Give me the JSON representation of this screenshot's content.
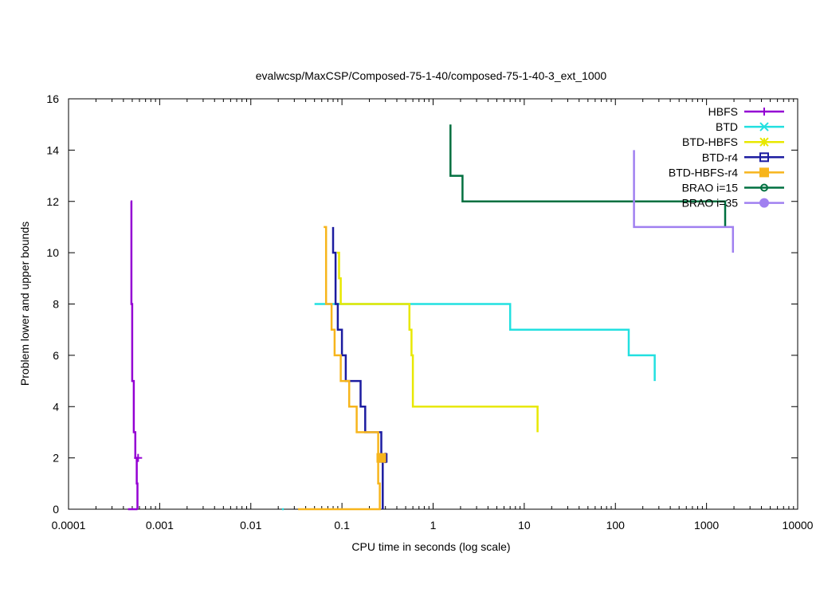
{
  "chart_data": {
    "type": "line",
    "title": "evalwcsp/MaxCSP/Composed-75-1-40/composed-75-1-40-3_ext_1000",
    "xlabel": "CPU time in seconds (log scale)",
    "ylabel": "Problem lower and upper bounds",
    "xscale": "log",
    "xlim": [
      0.0001,
      10000
    ],
    "ylim": [
      0,
      16
    ],
    "xticks": [
      {
        "value": 0.0001,
        "label": "0.0001"
      },
      {
        "value": 0.001,
        "label": "0.001"
      },
      {
        "value": 0.01,
        "label": "0.01"
      },
      {
        "value": 0.1,
        "label": "0.1"
      },
      {
        "value": 1,
        "label": "1"
      },
      {
        "value": 10,
        "label": "10"
      },
      {
        "value": 100,
        "label": "100"
      },
      {
        "value": 1000,
        "label": "1000"
      },
      {
        "value": 10000,
        "label": "10000"
      }
    ],
    "yticks": [
      {
        "value": 0,
        "label": "0"
      },
      {
        "value": 2,
        "label": "2"
      },
      {
        "value": 4,
        "label": "4"
      },
      {
        "value": 6,
        "label": "6"
      },
      {
        "value": 8,
        "label": "8"
      },
      {
        "value": 10,
        "label": "10"
      },
      {
        "value": 12,
        "label": "12"
      },
      {
        "value": 14,
        "label": "14"
      },
      {
        "value": 16,
        "label": "16"
      }
    ],
    "grid": false,
    "legend_position": "top-right",
    "series": [
      {
        "name": "HBFS",
        "color": "#9400d3",
        "marker": "plus",
        "marker_point": [
          0.00058,
          2
        ],
        "lines": [
          [
            [
              0.00048,
              12
            ],
            [
              0.00049,
              12
            ],
            [
              0.00049,
              8
            ],
            [
              0.0005,
              8
            ],
            [
              0.0005,
              5
            ],
            [
              0.00052,
              5
            ],
            [
              0.00052,
              3
            ],
            [
              0.00054,
              3
            ],
            [
              0.00054,
              2
            ],
            [
              0.00056,
              2
            ],
            [
              0.00056,
              1
            ],
            [
              0.00057,
              1
            ],
            [
              0.00057,
              0
            ]
          ],
          [
            [
              0.00045,
              0
            ],
            [
              0.00057,
              0
            ]
          ]
        ]
      },
      {
        "name": "BTD",
        "color": "#22e0e0",
        "marker": "cross",
        "lines": [
          [
            [
              0.05,
              8
            ],
            [
              7,
              8
            ],
            [
              7,
              7
            ],
            [
              140,
              7
            ],
            [
              140,
              6
            ],
            [
              270,
              6
            ],
            [
              270,
              5
            ]
          ],
          [
            [
              0.022,
              0
            ],
            [
              0.023,
              0
            ]
          ]
        ]
      },
      {
        "name": "BTD-HBFS",
        "color": "#e8e800",
        "marker": "star",
        "lines": [
          [
            [
              0.088,
              10
            ],
            [
              0.093,
              10
            ],
            [
              0.093,
              9
            ],
            [
              0.097,
              9
            ],
            [
              0.097,
              8
            ],
            [
              0.55,
              8
            ],
            [
              0.55,
              7
            ],
            [
              0.58,
              7
            ],
            [
              0.58,
              6
            ],
            [
              0.6,
              6
            ],
            [
              0.6,
              4
            ],
            [
              14,
              4
            ],
            [
              14,
              3
            ]
          ]
        ]
      },
      {
        "name": "BTD-r4",
        "color": "#1c1ca0",
        "marker": "open-square",
        "marker_point": [
          0.28,
          2
        ],
        "lines": [
          [
            [
              0.08,
              11
            ],
            [
              0.08,
              10
            ],
            [
              0.085,
              10
            ],
            [
              0.085,
              8
            ],
            [
              0.09,
              8
            ],
            [
              0.09,
              7
            ],
            [
              0.1,
              7
            ],
            [
              0.1,
              6
            ],
            [
              0.11,
              6
            ],
            [
              0.11,
              5
            ],
            [
              0.16,
              5
            ],
            [
              0.16,
              4
            ],
            [
              0.18,
              4
            ],
            [
              0.18,
              3
            ],
            [
              0.27,
              3
            ],
            [
              0.27,
              2
            ],
            [
              0.28,
              2
            ],
            [
              0.28,
              0
            ]
          ],
          [
            [
              0.3,
              1.8
            ],
            [
              0.3,
              2.2
            ]
          ]
        ]
      },
      {
        "name": "BTD-HBFS-r4",
        "color": "#f7b51c",
        "marker": "filled-square",
        "marker_point": [
          0.27,
          2
        ],
        "lines": [
          [
            [
              0.063,
              11
            ],
            [
              0.067,
              11
            ],
            [
              0.067,
              8
            ],
            [
              0.077,
              8
            ],
            [
              0.077,
              7
            ],
            [
              0.083,
              7
            ],
            [
              0.083,
              6
            ],
            [
              0.097,
              6
            ],
            [
              0.097,
              5
            ],
            [
              0.12,
              5
            ],
            [
              0.12,
              4
            ],
            [
              0.145,
              4
            ],
            [
              0.145,
              3
            ],
            [
              0.25,
              3
            ],
            [
              0.25,
              1
            ],
            [
              0.26,
              1
            ],
            [
              0.26,
              0
            ],
            [
              0.033,
              0
            ]
          ]
        ]
      },
      {
        "name": "BRAO i=15",
        "color": "#007040",
        "marker": "open-circle",
        "lines": [
          [
            [
              1.55,
              15
            ],
            [
              1.55,
              13
            ],
            [
              2.1,
              13
            ],
            [
              2.1,
              12
            ],
            [
              1600,
              12
            ],
            [
              1600,
              11
            ]
          ]
        ]
      },
      {
        "name": "BRAO i=35",
        "color": "#a080f0",
        "marker": "filled-circle",
        "lines": [
          [
            [
              160,
              14
            ],
            [
              160,
              11
            ],
            [
              1950,
              11
            ],
            [
              1950,
              10
            ]
          ]
        ]
      }
    ]
  }
}
